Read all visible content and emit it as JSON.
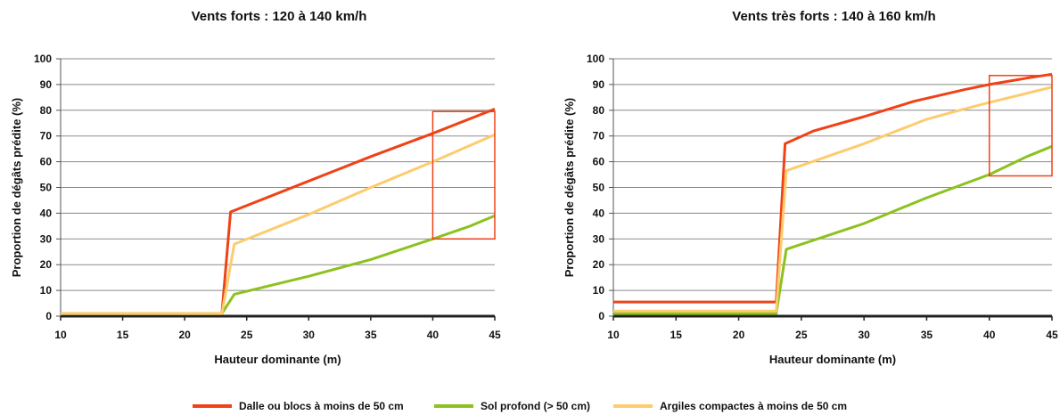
{
  "chart_data": [
    {
      "type": "line",
      "title": "Vents forts : 120 à 140 km/h",
      "xlabel": "Hauteur dominante (m)",
      "ylabel": "Proportion de dégâts prédite (%)",
      "xlim": [
        10,
        45
      ],
      "ylim": [
        0,
        100
      ],
      "xticks": [
        10,
        15,
        20,
        25,
        30,
        35,
        40,
        45
      ],
      "yticks": [
        0,
        10,
        20,
        30,
        40,
        50,
        60,
        70,
        80,
        90,
        100
      ],
      "grid": "horizontal",
      "series": [
        {
          "name": "Dalle ou blocs à moins de 50 cm",
          "color": "#ef4217",
          "points": [
            [
              10,
              1
            ],
            [
              23,
              1
            ],
            [
              23.7,
              40.5
            ],
            [
              30,
              52.5
            ],
            [
              35,
              62
            ],
            [
              40,
              71
            ],
            [
              45,
              80.5
            ]
          ]
        },
        {
          "name": "Sol profond (> 50 cm)",
          "color": "#8cc21f",
          "points": [
            [
              10,
              1
            ],
            [
              23,
              1
            ],
            [
              24,
              8.5
            ],
            [
              30,
              15.5
            ],
            [
              35,
              22
            ],
            [
              40,
              30
            ],
            [
              43,
              35
            ],
            [
              45,
              39
            ]
          ]
        },
        {
          "name": "Argiles compactes à moins de 50 cm",
          "color": "#fccc6e",
          "points": [
            [
              10,
              1
            ],
            [
              23,
              1
            ],
            [
              24,
              28
            ],
            [
              30,
              39.5
            ],
            [
              35,
              50
            ],
            [
              40,
              60
            ],
            [
              45,
              70.5
            ]
          ]
        }
      ],
      "highlight": {
        "x": [
          40,
          45
        ],
        "y": [
          30,
          79.5
        ],
        "color": "#ef4217"
      }
    },
    {
      "type": "line",
      "title": "Vents très forts : 140 à 160 km/h",
      "xlabel": "Hauteur dominante (m)",
      "ylabel": "Proportion de dégâts prédite (%)",
      "xlim": [
        10,
        45
      ],
      "ylim": [
        0,
        100
      ],
      "xticks": [
        10,
        15,
        20,
        25,
        30,
        35,
        40,
        45
      ],
      "yticks": [
        0,
        10,
        20,
        30,
        40,
        50,
        60,
        70,
        80,
        90,
        100
      ],
      "grid": "horizontal",
      "series": [
        {
          "name": "Dalle ou blocs à moins de 50 cm",
          "color": "#ef4217",
          "points": [
            [
              10,
              5.5
            ],
            [
              23,
              5.5
            ],
            [
              23.7,
              67
            ],
            [
              26,
              72
            ],
            [
              30,
              77.5
            ],
            [
              34,
              83.5
            ],
            [
              38,
              88
            ],
            [
              40,
              90
            ],
            [
              43,
              92.5
            ],
            [
              45,
              94
            ]
          ]
        },
        {
          "name": "Sol profond (> 50 cm)",
          "color": "#8cc21f",
          "points": [
            [
              10,
              1
            ],
            [
              23,
              1
            ],
            [
              23.8,
              26
            ],
            [
              30,
              36
            ],
            [
              35,
              46
            ],
            [
              40,
              55
            ],
            [
              43,
              62
            ],
            [
              45,
              66
            ]
          ]
        },
        {
          "name": "Argiles compactes à moins de 50 cm",
          "color": "#fccc6e",
          "points": [
            [
              10,
              2
            ],
            [
              23,
              2
            ],
            [
              23.8,
              56.5
            ],
            [
              30,
              67
            ],
            [
              35,
              76.5
            ],
            [
              38,
              80.5
            ],
            [
              40,
              83
            ],
            [
              45,
              89
            ]
          ]
        }
      ],
      "highlight": {
        "x": [
          40,
          45
        ],
        "y": [
          54.5,
          93.5
        ],
        "color": "#ef4217"
      }
    }
  ],
  "legend": {
    "items": [
      {
        "label": "Dalle ou blocs à moins de 50 cm",
        "color": "#ef4217"
      },
      {
        "label": "Sol profond (> 50 cm)",
        "color": "#8cc21f"
      },
      {
        "label": "Argiles compactes à moins de 50 cm",
        "color": "#fccc6e"
      }
    ]
  }
}
